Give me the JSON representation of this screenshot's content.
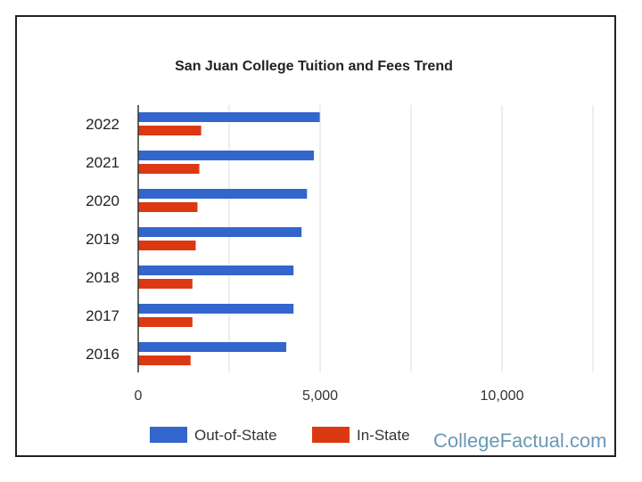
{
  "chart_data": {
    "type": "bar",
    "orientation": "horizontal",
    "title": "San Juan College Tuition and Fees Trend",
    "categories": [
      "2022",
      "2021",
      "2020",
      "2019",
      "2018",
      "2017",
      "2016"
    ],
    "series": [
      {
        "name": "Out-of-State",
        "color": "#3366cc",
        "values": [
          4990,
          4830,
          4640,
          4490,
          4270,
          4270,
          4070
        ]
      },
      {
        "name": "In-State",
        "color": "#dc3912",
        "values": [
          1730,
          1680,
          1630,
          1580,
          1490,
          1490,
          1440
        ]
      }
    ],
    "xlim": [
      0,
      12500
    ],
    "xticks": [
      0,
      5000,
      10000
    ],
    "xtick_labels": [
      "0",
      "5,000",
      "10,000"
    ],
    "gridlines": [
      2500,
      5000,
      7500,
      10000,
      12500
    ],
    "grid": true,
    "legend": "bottom",
    "xlabel": "",
    "ylabel": ""
  },
  "watermark": "CollegeFactual.com"
}
